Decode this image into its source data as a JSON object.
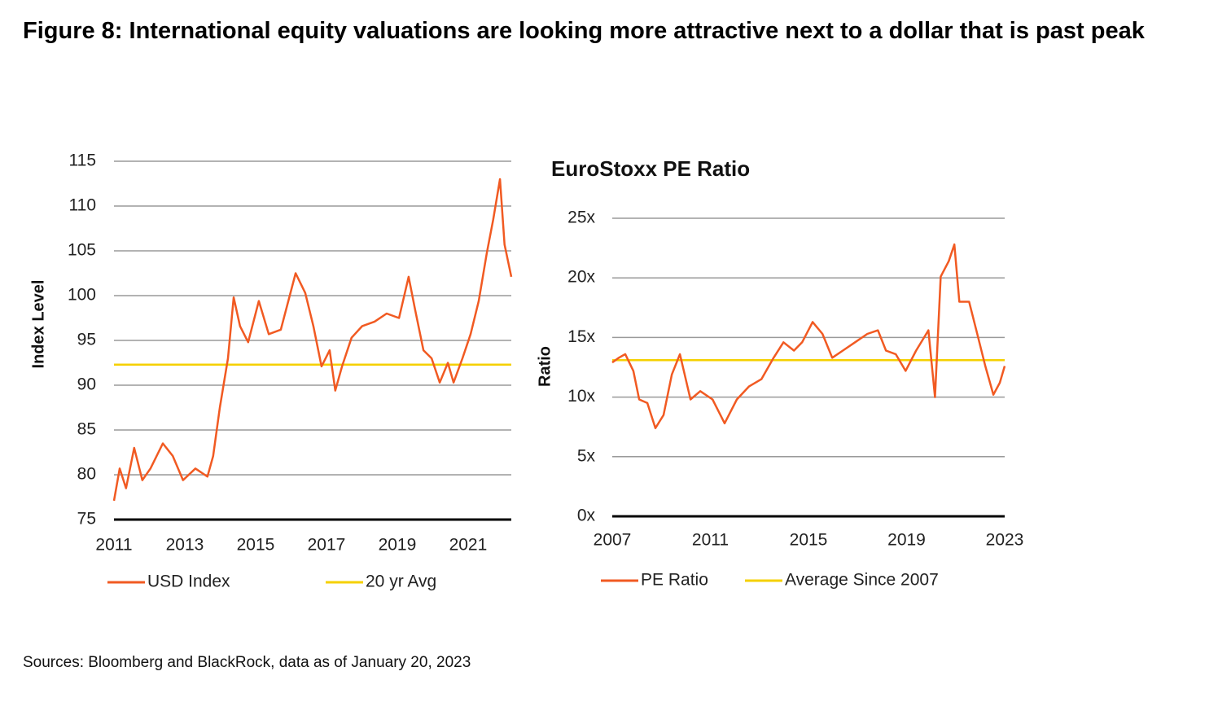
{
  "title": "Figure 8: International equity valuations are looking more attractive next to a dollar that is past peak",
  "source": "Sources: Bloomberg and BlackRock, data as of January 20, 2023",
  "chart_data": [
    {
      "type": "line",
      "ylabel": "Index Level",
      "xlim": [
        2011,
        2022.22
      ],
      "xticks": [
        2011,
        2013,
        2015,
        2017,
        2019,
        2021
      ],
      "ylim": [
        75,
        115
      ],
      "yticks": [
        75,
        80,
        85,
        90,
        95,
        100,
        105,
        110,
        115
      ],
      "grid": true,
      "series": [
        {
          "name": "USD Index",
          "color": "#f15a22",
          "x": [
            2011.0,
            2011.16,
            2011.34,
            2011.57,
            2011.8,
            2012.03,
            2012.38,
            2012.66,
            2012.95,
            2013.3,
            2013.64,
            2013.8,
            2013.99,
            2014.22,
            2014.38,
            2014.56,
            2014.79,
            2015.09,
            2015.37,
            2015.71,
            2016.13,
            2016.4,
            2016.63,
            2016.86,
            2017.09,
            2017.25,
            2017.44,
            2017.71,
            2018.01,
            2018.36,
            2018.7,
            2019.05,
            2019.32,
            2019.5,
            2019.74,
            2019.97,
            2020.2,
            2020.43,
            2020.59,
            2020.84,
            2021.07,
            2021.3,
            2021.53,
            2021.71,
            2021.9,
            2022.03,
            2022.22
          ],
          "values": [
            77.1,
            80.7,
            78.5,
            83,
            79.4,
            80.7,
            83.5,
            82.1,
            79.4,
            80.7,
            79.8,
            82.1,
            87.5,
            93,
            99.8,
            96.6,
            94.8,
            99.4,
            95.7,
            96.2,
            102.5,
            100.3,
            96.6,
            92.1,
            93.9,
            89.4,
            92.1,
            95.3,
            96.6,
            97.1,
            98,
            97.5,
            102.1,
            98.5,
            93.9,
            93,
            90.3,
            92.5,
            90.3,
            93,
            95.7,
            99.4,
            104.8,
            108.5,
            113,
            105.7,
            102.1
          ]
        },
        {
          "name": "20 yr Avg",
          "color": "#f5d000",
          "x": [
            2011,
            2022.22
          ],
          "values": [
            92.3,
            92.3
          ]
        }
      ]
    },
    {
      "type": "line",
      "title": "EuroStoxx PE Ratio",
      "ylabel": "Ratio",
      "xlim": [
        2007,
        2023
      ],
      "xticks": [
        2007,
        2011,
        2015,
        2019,
        2023
      ],
      "ylim": [
        0,
        25
      ],
      "yticks": [
        {
          "value": 0,
          "label": "0x"
        },
        {
          "value": 5,
          "label": "5x"
        },
        {
          "value": 10,
          "label": "10x"
        },
        {
          "value": 15,
          "label": "15x"
        },
        {
          "value": 20,
          "label": "20x"
        },
        {
          "value": 25,
          "label": "25x"
        }
      ],
      "grid": true,
      "series": [
        {
          "name": "PE Ratio",
          "color": "#f15a22",
          "x": [
            2007.0,
            2007.27,
            2007.53,
            2007.86,
            2008.1,
            2008.43,
            2008.76,
            2009.09,
            2009.43,
            2009.76,
            2010.19,
            2010.59,
            2011.09,
            2011.58,
            2012.08,
            2012.58,
            2013.08,
            2013.58,
            2013.98,
            2014.41,
            2014.74,
            2015.17,
            2015.57,
            2015.97,
            2016.4,
            2016.9,
            2017.4,
            2017.83,
            2018.16,
            2018.56,
            2018.96,
            2019.39,
            2019.89,
            2020.16,
            2020.39,
            2020.72,
            2020.95,
            2021.15,
            2021.55,
            2021.88,
            2022.21,
            2022.54,
            2022.8,
            2023.0
          ],
          "values": [
            12.9,
            13.3,
            13.6,
            12.2,
            9.8,
            9.5,
            7.4,
            8.5,
            11.9,
            13.6,
            9.8,
            10.5,
            9.8,
            7.8,
            9.8,
            10.9,
            11.5,
            13.3,
            14.6,
            13.9,
            14.6,
            16.3,
            15.3,
            13.3,
            13.9,
            14.6,
            15.3,
            15.6,
            13.9,
            13.6,
            12.2,
            13.9,
            15.6,
            10.0,
            20.1,
            21.4,
            22.8,
            18.0,
            18.0,
            15.3,
            12.6,
            10.2,
            11.2,
            12.6
          ]
        },
        {
          "name": "Average Since 2007",
          "color": "#f5d000",
          "x": [
            2007,
            2023
          ],
          "values": [
            13.1,
            13.1
          ]
        }
      ]
    }
  ]
}
